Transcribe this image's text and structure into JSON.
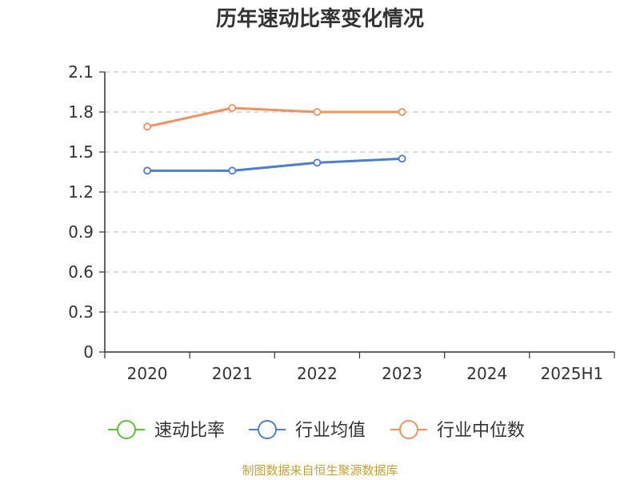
{
  "chart_data": {
    "type": "line",
    "title": "历年速动比率变化情况",
    "categories": [
      "2020",
      "2021",
      "2022",
      "2023",
      "2024",
      "2025H1"
    ],
    "ylim": [
      0,
      2.1
    ],
    "yticks": [
      "0",
      "0.3",
      "0.6",
      "0.9",
      "1.2",
      "1.5",
      "1.8",
      "2.1"
    ],
    "grid": true,
    "legend_position": "bottom",
    "series": [
      {
        "name": "速动比率",
        "color": "#5bc236",
        "values": [
          null,
          null,
          null,
          null,
          null,
          null
        ]
      },
      {
        "name": "行业均值",
        "color": "#4a7fd4",
        "values": [
          1.36,
          1.36,
          1.42,
          1.45,
          null,
          null
        ]
      },
      {
        "name": "行业中位数",
        "color": "#f5905a",
        "values": [
          1.69,
          1.83,
          1.8,
          1.8,
          null,
          null
        ]
      }
    ]
  },
  "source_note": "制图数据来自恒生聚源数据库"
}
